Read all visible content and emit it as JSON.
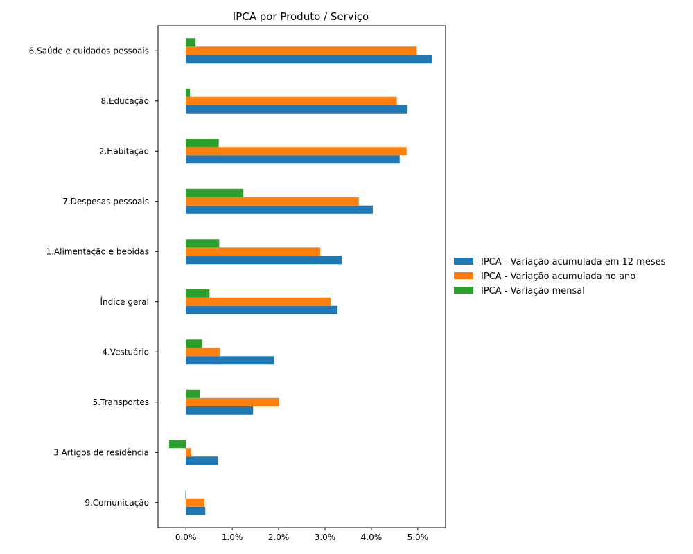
{
  "chart_data": {
    "type": "bar",
    "orientation": "horizontal",
    "title": "IPCA por Produto / Serviço",
    "xlabel": "",
    "ylabel": "",
    "xlim": [
      -0.6,
      5.6
    ],
    "x_ticks": [
      0,
      1,
      2,
      3,
      4,
      5
    ],
    "x_tick_labels": [
      "0.0%",
      "1.0%",
      "2.0%",
      "3.0%",
      "4.0%",
      "5.0%"
    ],
    "categories": [
      "6.Saúde e cuidados pessoais",
      "8.Educação",
      "2.Habitação",
      "7.Despesas pessoais",
      "1.Alimentação e bebidas",
      "Índice geral",
      "4.Vestuário",
      "5.Transportes",
      "3.Artigos de residência",
      "9.Comunicação"
    ],
    "series": [
      {
        "name": "IPCA - Variação acumulada em 12 meses",
        "color": "#1f77b4",
        "values": [
          5.31,
          4.78,
          4.61,
          4.03,
          3.36,
          3.27,
          1.9,
          1.45,
          0.69,
          0.42
        ]
      },
      {
        "name": "IPCA - Variação acumulada no ano",
        "color": "#ff7f0e",
        "values": [
          4.98,
          4.55,
          4.76,
          3.73,
          2.9,
          3.12,
          0.74,
          2.01,
          0.12,
          0.4
        ]
      },
      {
        "name": "IPCA - Variação mensal",
        "color": "#2ca02c",
        "values": [
          0.21,
          0.09,
          0.71,
          1.24,
          0.72,
          0.51,
          0.35,
          0.3,
          -0.36,
          -0.01
        ]
      }
    ],
    "legend_position": "right"
  }
}
